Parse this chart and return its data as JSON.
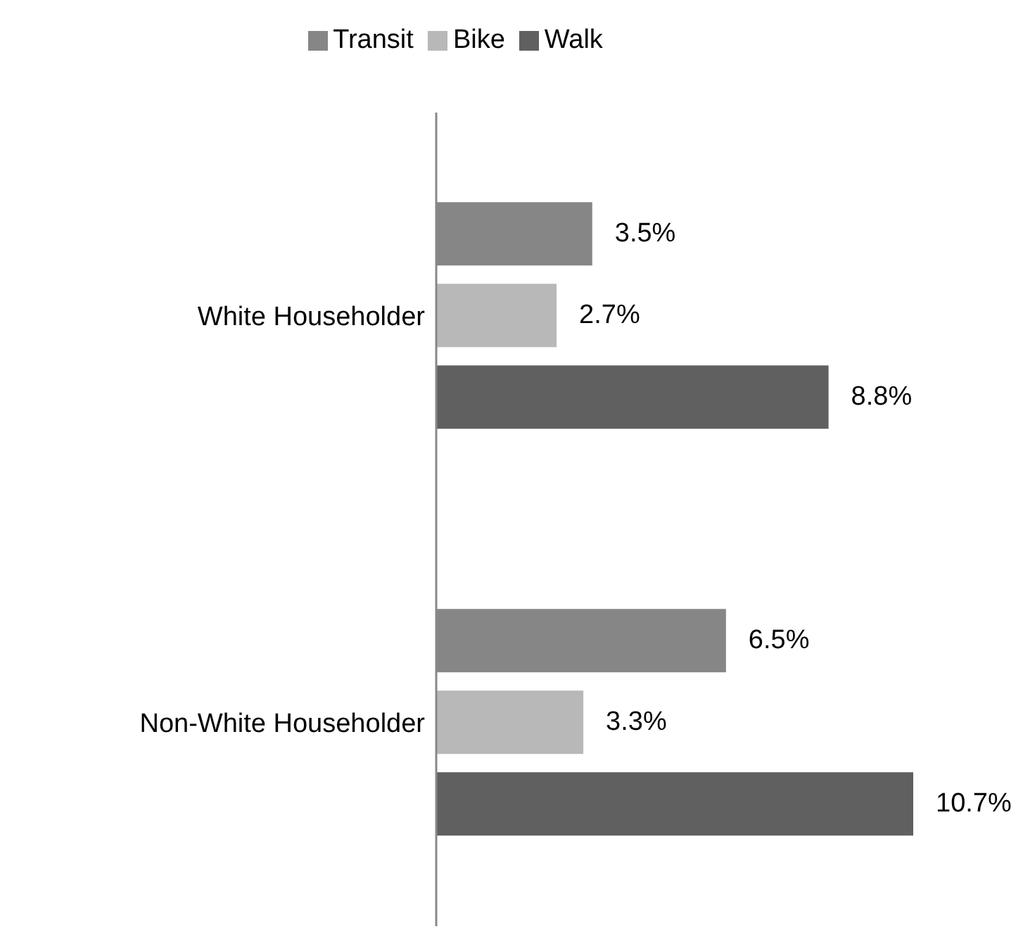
{
  "chart_data": {
    "type": "bar",
    "orientation": "horizontal",
    "legend": "top",
    "categories": [
      "White Householder",
      "Non-White Householder"
    ],
    "series": [
      {
        "name": "Transit",
        "color": "#868686",
        "values": [
          3.5,
          6.5
        ],
        "value_labels": [
          "3.5%",
          "6.5%"
        ]
      },
      {
        "name": "Bike",
        "color": "#b8b8b8",
        "values": [
          2.7,
          3.3
        ],
        "value_labels": [
          "2.7%",
          "3.3%"
        ]
      },
      {
        "name": "Walk",
        "color": "#606060",
        "values": [
          8.8,
          10.7
        ],
        "value_labels": [
          "8.8%",
          "10.7%"
        ]
      }
    ]
  }
}
